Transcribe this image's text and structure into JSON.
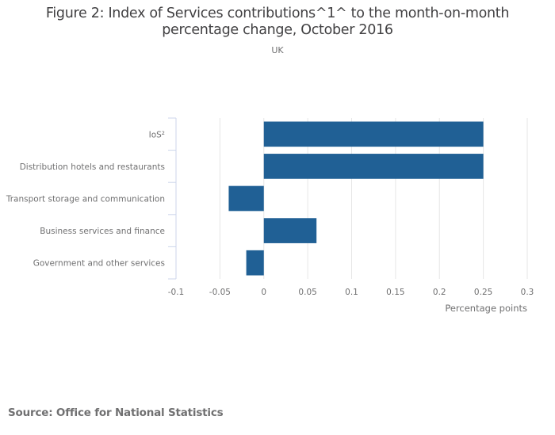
{
  "chart_data": {
    "type": "bar",
    "orientation": "horizontal",
    "title": "Figure 2: Index of Services contributions^1^ to the month-on-month percentage change, October 2016",
    "title_lines": [
      "Figure 2: Index of Services contributions^1^ to the month-on-month",
      "percentage change, October 2016"
    ],
    "subtitle": "UK",
    "categories": [
      "IoS²",
      "Distribution hotels and restaurants",
      "Transport storage and communication",
      "Business services and finance",
      "Government and other services"
    ],
    "values": [
      0.25,
      0.25,
      -0.04,
      0.06,
      -0.02
    ],
    "xlabel": "Percentage points",
    "ylabel": "",
    "xlim": [
      -0.1,
      0.3
    ],
    "xticks": [
      -0.1,
      -0.05,
      0,
      0.05,
      0.1,
      0.15,
      0.2,
      0.25,
      0.3
    ],
    "xtick_labels": [
      "-0.1",
      "-0.05",
      "0",
      "0.05",
      "0.1",
      "0.15",
      "0.2",
      "0.25",
      "0.3"
    ],
    "grid": true,
    "bar_color": "#206095",
    "legend": "none"
  },
  "source": "Source: Office for National Statistics"
}
